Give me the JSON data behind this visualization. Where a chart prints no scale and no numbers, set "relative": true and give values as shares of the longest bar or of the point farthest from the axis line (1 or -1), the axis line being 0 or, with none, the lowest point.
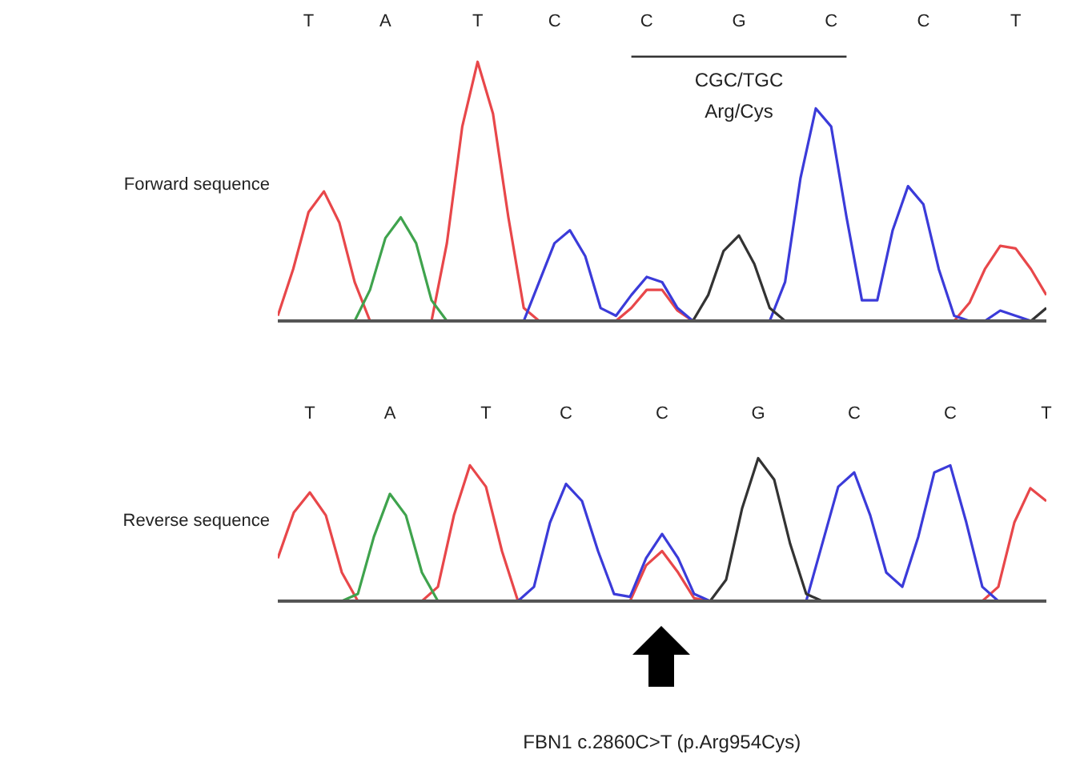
{
  "chart_data": [
    {
      "type": "line",
      "relative": true,
      "tick_labels": "x",
      "ylabel": "Forward sequence",
      "annotations": [
        "CGC/TGC",
        "Arg/Cys"
      ],
      "categories": [
        null,
        null,
        "T",
        null,
        null,
        null,
        null,
        "A",
        null,
        null,
        null,
        null,
        null,
        "T",
        null,
        null,
        null,
        null,
        "C",
        null,
        null,
        null,
        null,
        null,
        "C",
        null,
        null,
        null,
        null,
        null,
        "G",
        null,
        null,
        null,
        null,
        null,
        "C",
        null,
        null,
        null,
        null,
        null,
        "C",
        null,
        null,
        null,
        null,
        null,
        "T",
        null,
        null
      ],
      "series": [
        {
          "color": "#e8474a",
          "values": [
            0.02,
            0.2,
            0.42,
            0.5,
            0.38,
            0.15,
            0,
            null,
            null,
            null,
            0,
            0.3,
            0.75,
            1.0,
            0.8,
            0.4,
            0.05,
            0,
            null,
            null,
            null,
            null,
            0,
            0.05,
            0.12,
            0.12,
            0.04,
            0,
            null,
            null,
            null,
            null,
            null,
            null,
            null,
            null,
            null,
            null,
            null,
            null,
            null,
            null,
            null,
            null,
            0,
            0.07,
            0.2,
            0.29,
            0.28,
            0.2,
            0.1
          ]
        },
        {
          "color": "#3fa34d",
          "values": [
            null,
            null,
            null,
            null,
            null,
            0,
            0.12,
            0.32,
            0.4,
            0.3,
            0.08,
            0,
            null,
            null,
            null,
            null,
            null,
            null,
            null,
            null,
            null,
            null,
            null,
            null,
            null,
            null,
            null,
            null,
            null,
            null,
            null,
            null,
            null,
            null,
            null,
            null,
            null,
            null,
            null,
            null,
            null,
            null,
            null,
            null,
            null,
            null,
            null,
            null,
            null,
            null,
            null
          ]
        },
        {
          "color": "#3b3bd9",
          "values": [
            null,
            null,
            null,
            null,
            null,
            null,
            null,
            null,
            null,
            null,
            null,
            null,
            null,
            null,
            null,
            null,
            0,
            0.15,
            0.3,
            0.35,
            0.25,
            0.05,
            0.02,
            0.1,
            0.17,
            0.15,
            0.05,
            0,
            null,
            null,
            null,
            null,
            0,
            0.15,
            0.55,
            0.82,
            0.75,
            0.4,
            0.08,
            0.08,
            0.35,
            0.52,
            0.45,
            0.2,
            0.02,
            0,
            0,
            0.04,
            0.02,
            0,
            null
          ]
        },
        {
          "color": "#333333",
          "values": [
            null,
            null,
            null,
            null,
            null,
            null,
            null,
            null,
            null,
            null,
            null,
            null,
            null,
            null,
            null,
            null,
            null,
            null,
            null,
            null,
            null,
            null,
            null,
            null,
            null,
            null,
            null,
            0,
            0.1,
            0.27,
            0.33,
            0.22,
            0.05,
            0,
            null,
            null,
            null,
            null,
            null,
            null,
            null,
            null,
            null,
            null,
            null,
            null,
            null,
            null,
            null,
            0,
            0.05
          ]
        }
      ]
    },
    {
      "type": "line",
      "relative": true,
      "tick_labels": "x",
      "ylabel": "Reverse sequence",
      "annotations": [
        "FBN1 c.2860C>T (p.Arg954Cys)"
      ],
      "categories": [
        null,
        null,
        "T",
        null,
        null,
        null,
        null,
        "A",
        null,
        null,
        null,
        null,
        null,
        "T",
        null,
        null,
        null,
        null,
        "C",
        null,
        null,
        null,
        null,
        null,
        "C",
        null,
        null,
        null,
        null,
        null,
        "G",
        null,
        null,
        null,
        null,
        null,
        "C",
        null,
        null,
        null,
        null,
        null,
        "C",
        null,
        null,
        null,
        null,
        null,
        "T"
      ],
      "series": [
        {
          "color": "#e8474a",
          "values": [
            0.3,
            0.62,
            0.76,
            0.6,
            0.2,
            0,
            null,
            null,
            null,
            0,
            0.1,
            0.6,
            0.95,
            0.8,
            0.35,
            0,
            null,
            null,
            null,
            null,
            null,
            null,
            0,
            0.25,
            0.35,
            0.2,
            0.02,
            0,
            null,
            null,
            null,
            null,
            null,
            null,
            null,
            null,
            null,
            null,
            null,
            null,
            null,
            null,
            null,
            null,
            0,
            0.1,
            0.55,
            0.79,
            0.7
          ]
        },
        {
          "color": "#3fa34d",
          "values": [
            null,
            null,
            null,
            null,
            0,
            0.05,
            0.45,
            0.75,
            0.6,
            0.2,
            0,
            null,
            null,
            null,
            null,
            null,
            null,
            null,
            null,
            null,
            null,
            null,
            null,
            null,
            null,
            null,
            null,
            null,
            null,
            null,
            null,
            null,
            null,
            null,
            null,
            null,
            null,
            null,
            null,
            null,
            null,
            null,
            null,
            null,
            null,
            null,
            null,
            null,
            null
          ]
        },
        {
          "color": "#3b3bd9",
          "values": [
            null,
            null,
            null,
            null,
            null,
            null,
            null,
            null,
            null,
            null,
            null,
            null,
            null,
            null,
            null,
            0,
            0.1,
            0.55,
            0.82,
            0.7,
            0.35,
            0.05,
            0.03,
            0.3,
            0.47,
            0.3,
            0.05,
            0,
            null,
            null,
            null,
            null,
            null,
            0,
            0.4,
            0.8,
            0.9,
            0.6,
            0.2,
            0.1,
            0.45,
            0.9,
            0.95,
            0.55,
            0.1,
            0,
            null,
            null,
            null
          ]
        },
        {
          "color": "#333333",
          "values": [
            null,
            null,
            null,
            null,
            null,
            null,
            null,
            null,
            null,
            null,
            null,
            null,
            null,
            null,
            null,
            null,
            null,
            null,
            null,
            null,
            null,
            null,
            null,
            null,
            null,
            null,
            null,
            0,
            0.15,
            0.65,
            1.0,
            0.85,
            0.4,
            0.05,
            0,
            null,
            null,
            null,
            null,
            null,
            null,
            null,
            null,
            null,
            null,
            null,
            null,
            null,
            null
          ]
        }
      ]
    }
  ]
}
